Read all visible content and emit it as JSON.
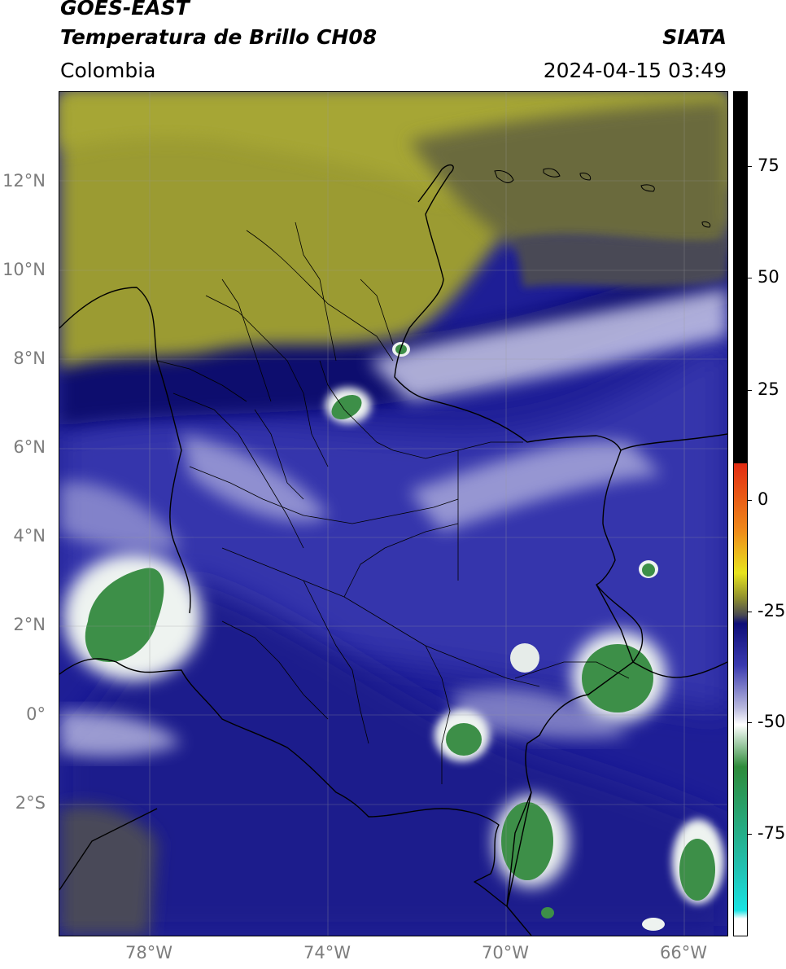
{
  "header": {
    "satellite": "GOES-EAST",
    "product": "Temperatura de Brillo CH08",
    "region": "Colombia",
    "timestamp": "2024-04-15 03:49",
    "brand": "SIATA"
  },
  "axes": {
    "lat_labels": [
      "12°N",
      "10°N",
      "8°N",
      "6°N",
      "4°N",
      "2°N",
      "0°",
      "2°S"
    ],
    "lon_labels": [
      "78°W",
      "74°W",
      "70°W",
      "66°W"
    ]
  },
  "colorbar": {
    "labels": [
      "75",
      "50",
      "25",
      "0",
      "-25",
      "-50",
      "-75"
    ],
    "colors": {
      "black": "#000000",
      "red": "#e22b12",
      "orange": "#ef8a1a",
      "yellow": "#e8e41e",
      "olive": "#8f8f2e",
      "gray": "#4a4a52",
      "navy": "#0e0e78",
      "blue": "#3b3bb0",
      "lavender": "#b8b8dd",
      "white": "#ffffff",
      "green": "#2e8b3a",
      "teal": "#21c1b1",
      "cyan": "#19e3e3"
    }
  },
  "map_colors": {
    "dry_olive": "#9b9b32",
    "dark_olive": "#5e5e3d",
    "gray": "#4a4a55",
    "deep_blue": "#101085",
    "mid_blue": "#2b2ba0",
    "pale": "#c9c9e6",
    "cloud_green": "#3d8f48"
  }
}
